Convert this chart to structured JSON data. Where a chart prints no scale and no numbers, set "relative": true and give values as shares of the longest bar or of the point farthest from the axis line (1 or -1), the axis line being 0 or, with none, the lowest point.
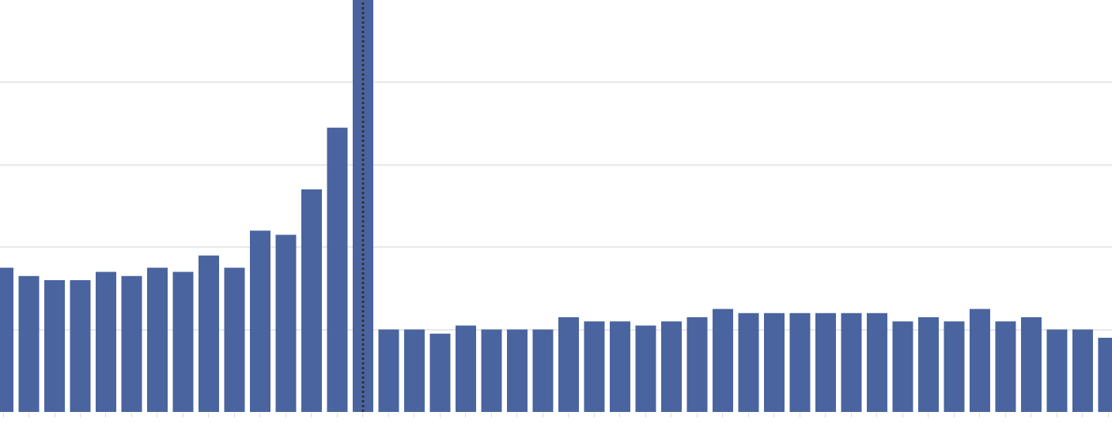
{
  "chart_data": {
    "type": "bar",
    "relative": true,
    "grid": true,
    "color": "#4a64a0",
    "categories": [
      null,
      null,
      null,
      null,
      null,
      null,
      null,
      null,
      null,
      null,
      null,
      null,
      null,
      null,
      null,
      null,
      null,
      null,
      null,
      null,
      null,
      null,
      null,
      null,
      null,
      null,
      null,
      null,
      null,
      null,
      null,
      null,
      null,
      null,
      null,
      null,
      null,
      null,
      null,
      null,
      null,
      null,
      null,
      null
    ],
    "values": [
      0.35,
      0.33,
      0.32,
      0.32,
      0.34,
      0.33,
      0.35,
      0.34,
      0.38,
      0.35,
      0.44,
      0.43,
      0.54,
      0.69,
      1,
      0.2,
      0.2,
      0.19,
      0.21,
      0.2,
      0.2,
      0.2,
      0.23,
      0.22,
      0.22,
      0.21,
      0.22,
      0.23,
      0.25,
      0.24,
      0.24,
      0.24,
      0.24,
      0.24,
      0.24,
      0.22,
      0.23,
      0.22,
      0.25,
      0.22,
      0.23,
      0.2,
      0.2,
      0.18
    ]
  }
}
